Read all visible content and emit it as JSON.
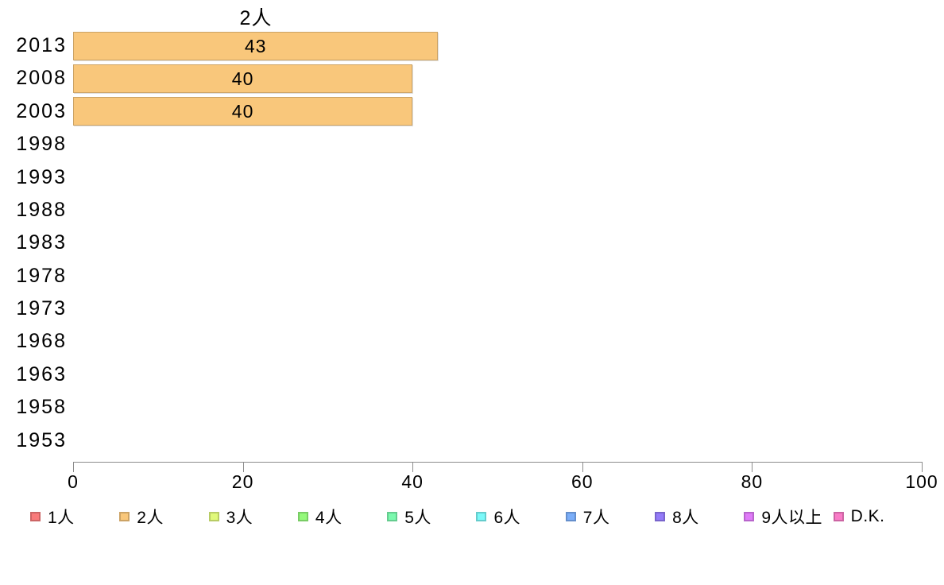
{
  "chart_data": {
    "type": "bar",
    "orientation": "horizontal",
    "title": "2人",
    "categories": [
      "2013",
      "2008",
      "2003",
      "1998",
      "1993",
      "1988",
      "1983",
      "1978",
      "1973",
      "1968",
      "1963",
      "1958",
      "1953"
    ],
    "values": [
      43,
      40,
      40,
      null,
      null,
      null,
      null,
      null,
      null,
      null,
      null,
      null,
      null
    ],
    "xlabel": "",
    "ylabel": "",
    "xlim": [
      0,
      100
    ],
    "x_ticks": [
      0,
      20,
      40,
      60,
      80,
      100
    ],
    "grid": false,
    "legend_position": "bottom",
    "bar_fill": "#F9C77B",
    "bar_border": "#CCA365",
    "axis_color": "#8C8C8C",
    "text_color": "#000000",
    "legend": [
      {
        "label": "1人",
        "fill": "#F97B7B",
        "border": "#CC6565"
      },
      {
        "label": "2人",
        "fill": "#F9C77B",
        "border": "#CCA365"
      },
      {
        "label": "3人",
        "fill": "#E0F97B",
        "border": "#B8CC65"
      },
      {
        "label": "4人",
        "fill": "#94F97B",
        "border": "#79CC65"
      },
      {
        "label": "5人",
        "fill": "#7BF9AE",
        "border": "#65CC8F"
      },
      {
        "label": "6人",
        "fill": "#7BF9F9",
        "border": "#65CCCC"
      },
      {
        "label": "7人",
        "fill": "#7BAEF9",
        "border": "#658FCC"
      },
      {
        "label": "8人",
        "fill": "#947BF9",
        "border": "#7965CC"
      },
      {
        "label": "9人以上",
        "fill": "#E07BF9",
        "border": "#B865CC"
      },
      {
        "label": "D.K.",
        "fill": "#F97BC7",
        "border": "#CC65A3"
      }
    ]
  }
}
